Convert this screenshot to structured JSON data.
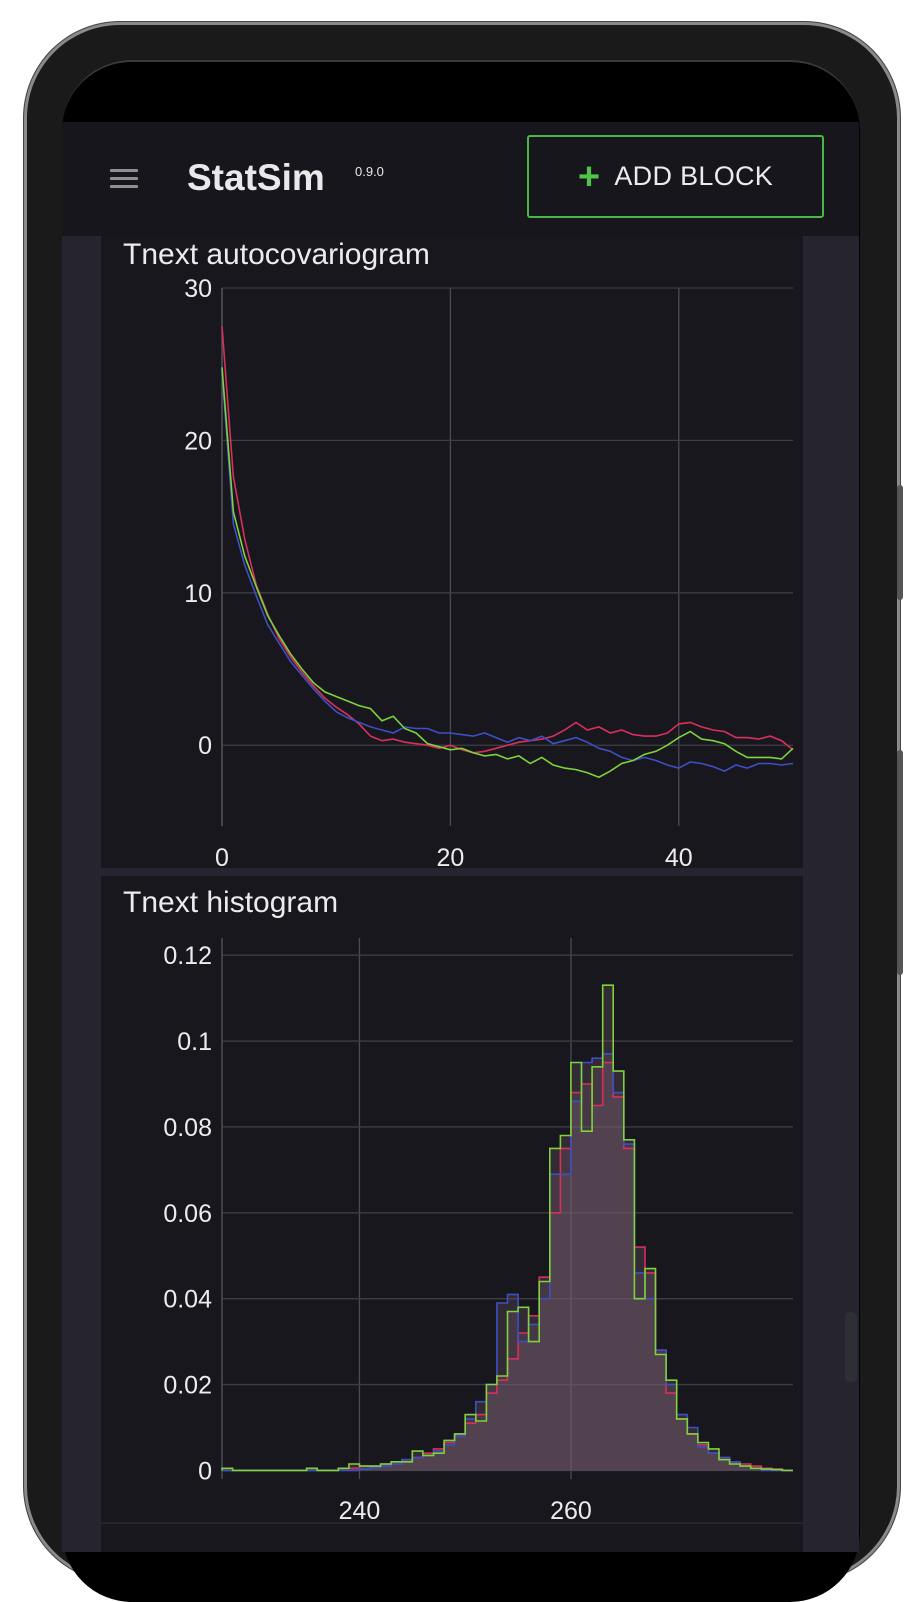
{
  "app": {
    "name": "StatSim",
    "version": "0.9.0",
    "add_block_label": "ADD BLOCK"
  },
  "colors": {
    "accent": "#48b843",
    "series_red": "#d8305a",
    "series_blue": "#3e4fc4",
    "series_green": "#7ed23b"
  },
  "chart_data": [
    {
      "type": "line",
      "title": "Tnext autocovariogram",
      "xlim": [
        0,
        50
      ],
      "ylim": [
        -5.3,
        30
      ],
      "xticks": [
        "0",
        "20",
        "40"
      ],
      "xtick_values": [
        0,
        20,
        40
      ],
      "yticks": [
        "0",
        "10",
        "20",
        "30"
      ],
      "ytick_values": [
        0,
        10,
        20,
        30
      ],
      "grid": true,
      "series": [
        {
          "color": "#d8305a",
          "x": [
            0,
            1,
            2,
            3,
            4,
            5,
            6,
            7,
            8,
            9,
            10,
            11,
            12,
            13,
            14,
            15,
            16,
            17,
            18,
            19,
            20,
            21,
            22,
            23,
            24,
            25,
            26,
            27,
            28,
            29,
            30,
            31,
            32,
            33,
            34,
            35,
            36,
            37,
            38,
            39,
            40,
            41,
            42,
            43,
            44,
            45,
            46,
            47,
            48,
            49,
            50
          ],
          "y": [
            27.5,
            17.6,
            13.5,
            10.5,
            8.6,
            7.0,
            5.8,
            4.8,
            3.9,
            3.1,
            2.5,
            2.0,
            1.4,
            0.6,
            0.3,
            0.4,
            0.2,
            0.1,
            0.0,
            -0.2,
            0.0,
            -0.3,
            -0.5,
            -0.4,
            -0.2,
            0.0,
            0.2,
            0.3,
            0.4,
            0.6,
            1.0,
            1.5,
            1.0,
            1.2,
            0.8,
            1.0,
            0.7,
            0.6,
            0.6,
            0.8,
            1.4,
            1.5,
            1.2,
            1.0,
            0.9,
            0.5,
            0.5,
            0.4,
            0.6,
            0.3,
            -0.3
          ]
        },
        {
          "color": "#3e4fc4",
          "x": [
            0,
            1,
            2,
            3,
            4,
            5,
            6,
            7,
            8,
            9,
            10,
            11,
            12,
            13,
            14,
            15,
            16,
            17,
            18,
            19,
            20,
            21,
            22,
            23,
            24,
            25,
            26,
            27,
            28,
            29,
            30,
            31,
            32,
            33,
            34,
            35,
            36,
            37,
            38,
            39,
            40,
            41,
            42,
            43,
            44,
            45,
            46,
            47,
            48,
            49,
            50
          ],
          "y": [
            24.5,
            14.5,
            11.8,
            9.8,
            7.9,
            6.7,
            5.5,
            4.6,
            3.7,
            2.9,
            2.2,
            1.8,
            1.5,
            1.2,
            1.0,
            0.8,
            1.2,
            1.1,
            1.1,
            0.8,
            0.8,
            0.7,
            0.6,
            0.8,
            0.5,
            0.2,
            0.5,
            0.3,
            0.6,
            0.1,
            0.3,
            0.5,
            0.2,
            -0.2,
            -0.4,
            -0.8,
            -1.0,
            -0.8,
            -1.0,
            -1.3,
            -1.5,
            -1.1,
            -1.2,
            -1.4,
            -1.7,
            -1.3,
            -1.5,
            -1.2,
            -1.2,
            -1.3,
            -1.2
          ]
        },
        {
          "color": "#7ed23b",
          "x": [
            0,
            1,
            2,
            3,
            4,
            5,
            6,
            7,
            8,
            9,
            10,
            11,
            12,
            13,
            14,
            15,
            16,
            17,
            18,
            19,
            20,
            21,
            22,
            23,
            24,
            25,
            26,
            27,
            28,
            29,
            30,
            31,
            32,
            33,
            34,
            35,
            36,
            37,
            38,
            39,
            40,
            41,
            42,
            43,
            44,
            45,
            46,
            47,
            48,
            49,
            50
          ],
          "y": [
            24.8,
            15.3,
            12.4,
            10.4,
            8.5,
            7.2,
            6.0,
            5.0,
            4.1,
            3.5,
            3.2,
            2.9,
            2.6,
            2.4,
            1.6,
            1.9,
            1.1,
            0.8,
            0.1,
            -0.1,
            -0.3,
            -0.2,
            -0.5,
            -0.7,
            -0.6,
            -0.9,
            -0.7,
            -1.2,
            -0.8,
            -1.3,
            -1.5,
            -1.6,
            -1.8,
            -2.1,
            -1.7,
            -1.2,
            -1.0,
            -0.6,
            -0.4,
            0.0,
            0.5,
            0.9,
            0.4,
            0.3,
            0.1,
            -0.4,
            -0.8,
            -0.8,
            -0.8,
            -0.9,
            -0.2
          ]
        }
      ]
    },
    {
      "type": "histogram",
      "title": "Tnext histogram",
      "xlim": [
        227,
        281
      ],
      "ylim": [
        -0.002,
        0.124
      ],
      "xticks": [
        "240",
        "260"
      ],
      "xtick_values": [
        240,
        260
      ],
      "yticks": [
        "0",
        "0.02",
        "0.04",
        "0.06",
        "0.08",
        "0.1",
        "0.12"
      ],
      "ytick_values": [
        0,
        0.02,
        0.04,
        0.06,
        0.08,
        0.1,
        0.12
      ],
      "grid": true,
      "bin_width": 1,
      "series": [
        {
          "color": "#d8305a",
          "start": 227,
          "values": [
            0,
            0,
            0,
            0,
            0,
            0,
            0,
            0,
            0,
            0,
            0,
            0.0005,
            0.0005,
            0.001,
            0.001,
            0.0015,
            0.002,
            0.0025,
            0.003,
            0.004,
            0.005,
            0.0065,
            0.0085,
            0.011,
            0.013,
            0.018,
            0.021,
            0.026,
            0.032,
            0.036,
            0.045,
            0.06,
            0.075,
            0.088,
            0.09,
            0.085,
            0.095,
            0.087,
            0.075,
            0.052,
            0.046,
            0.028,
            0.018,
            0.012,
            0.0085,
            0.006,
            0.004,
            0.003,
            0.002,
            0.0015,
            0.001,
            0.0005,
            0.0003,
            0
          ]
        },
        {
          "color": "#3e4fc4",
          "start": 227,
          "values": [
            0,
            0,
            0,
            0,
            0,
            0,
            0,
            0,
            0,
            0,
            0,
            0,
            0,
            0.0003,
            0.0006,
            0.001,
            0.0015,
            0.0025,
            0.003,
            0.0035,
            0.0045,
            0.006,
            0.008,
            0.012,
            0.016,
            0.02,
            0.039,
            0.041,
            0.03,
            0.034,
            0.04,
            0.069,
            0.069,
            0.086,
            0.095,
            0.096,
            0.097,
            0.088,
            0.076,
            0.046,
            0.04,
            0.028,
            0.02,
            0.013,
            0.01,
            0.0055,
            0.004,
            0.003,
            0.002,
            0.001,
            0.0005,
            0,
            0,
            0
          ]
        },
        {
          "color": "#7ed23b",
          "start": 227,
          "values": [
            0.0005,
            0,
            0,
            0,
            0,
            0,
            0,
            0,
            0.0005,
            0,
            0,
            0.0005,
            0.0015,
            0.001,
            0.001,
            0.0015,
            0.002,
            0.002,
            0.0045,
            0.0035,
            0.004,
            0.007,
            0.0085,
            0.013,
            0.0115,
            0.02,
            0.022,
            0.037,
            0.038,
            0.03,
            0.044,
            0.075,
            0.078,
            0.095,
            0.079,
            0.094,
            0.113,
            0.093,
            0.077,
            0.04,
            0.047,
            0.027,
            0.021,
            0.012,
            0.0085,
            0.0065,
            0.005,
            0.0025,
            0.0015,
            0.001,
            0.0005,
            0.0003,
            0.0002,
            0
          ]
        }
      ]
    }
  ]
}
